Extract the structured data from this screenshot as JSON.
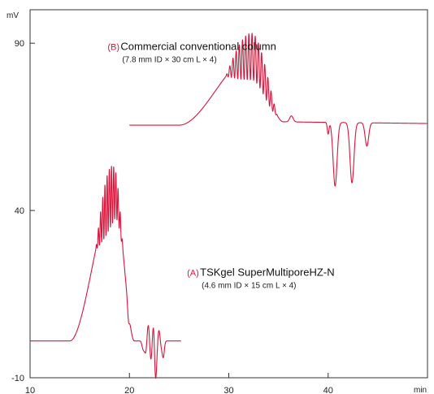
{
  "chart_data": {
    "type": "line",
    "xlabel": "min",
    "ylabel": "mV",
    "xlim": [
      10,
      50
    ],
    "ylim": [
      -10,
      100
    ],
    "x_ticks": [
      10,
      20,
      30,
      40
    ],
    "y_ticks": [
      -10,
      40,
      90
    ],
    "grid": false,
    "line_color": "#d9143a",
    "annotations": [
      {
        "letter": "(B)",
        "title": "Commercial conventional column",
        "subtitle": "(7.8 mm ID × 30 cm L × 4)",
        "x": 17.8,
        "y": 88
      },
      {
        "letter": "(A)",
        "title": "TSKgel SuperMultiporeHZ-N",
        "subtitle": "(4.6 mm ID × 15 cm L × 4)",
        "x": 25.8,
        "y": 20.5
      }
    ],
    "series": [
      {
        "label": "A",
        "x_range": [
          10,
          25.2
        ],
        "segments": [
          {
            "type": "flat",
            "x0": 10,
            "x1": 14.0,
            "y": 1.0
          },
          {
            "type": "rise",
            "x0": 14.0,
            "x1": 18.5,
            "y0": 1.0,
            "y1": 45.0
          },
          {
            "type": "fall",
            "x0": 18.5,
            "x1": 20.5,
            "y0": 45.0,
            "y1": 1.0
          },
          {
            "type": "flat",
            "x0": 20.5,
            "x1": 25.2,
            "y": 1.0
          }
        ],
        "oscillations": [
          {
            "x0": 16.6,
            "x1": 19.4,
            "period": 0.22,
            "amplitude": 9.0
          },
          {
            "x0": 21.2,
            "x1": 23.4,
            "period": 0.55,
            "amplitude": 5.5
          }
        ],
        "dips": [
          {
            "x": 19.9,
            "depth": 3.5,
            "width": 0.12
          },
          {
            "x": 21.4,
            "depth": 4.0,
            "width": 0.15
          },
          {
            "x": 22.6,
            "depth": 8.5,
            "width": 0.14
          },
          {
            "x": 23.4,
            "depth": 5.0,
            "width": 0.15
          }
        ]
      },
      {
        "label": "B",
        "x_range": [
          20,
          50
        ],
        "segments": [
          {
            "type": "flat",
            "x0": 20,
            "x1": 25.0,
            "y": 65.5
          },
          {
            "type": "rise",
            "x0": 25.0,
            "x1": 32.3,
            "y0": 65.5,
            "y1": 86.0
          },
          {
            "type": "fall",
            "x0": 32.3,
            "x1": 35.5,
            "y0": 86.0,
            "y1": 66.5
          },
          {
            "type": "slope",
            "x0": 35.5,
            "x1": 50,
            "y0": 66.5,
            "y1": 66.0
          }
        ],
        "oscillations": [
          {
            "x0": 29.7,
            "x1": 34.9,
            "period": 0.32,
            "amplitude": 7.0
          }
        ],
        "bumps": [
          {
            "x": 36.3,
            "height": 1.8,
            "width": 0.25
          }
        ],
        "dips": [
          {
            "x": 40.0,
            "depth": 3.5,
            "width": 0.12
          },
          {
            "x": 40.7,
            "depth": 19.0,
            "width": 0.28
          },
          {
            "x": 42.4,
            "depth": 18.0,
            "width": 0.28
          },
          {
            "x": 43.9,
            "depth": 7.0,
            "width": 0.25
          }
        ]
      }
    ]
  }
}
